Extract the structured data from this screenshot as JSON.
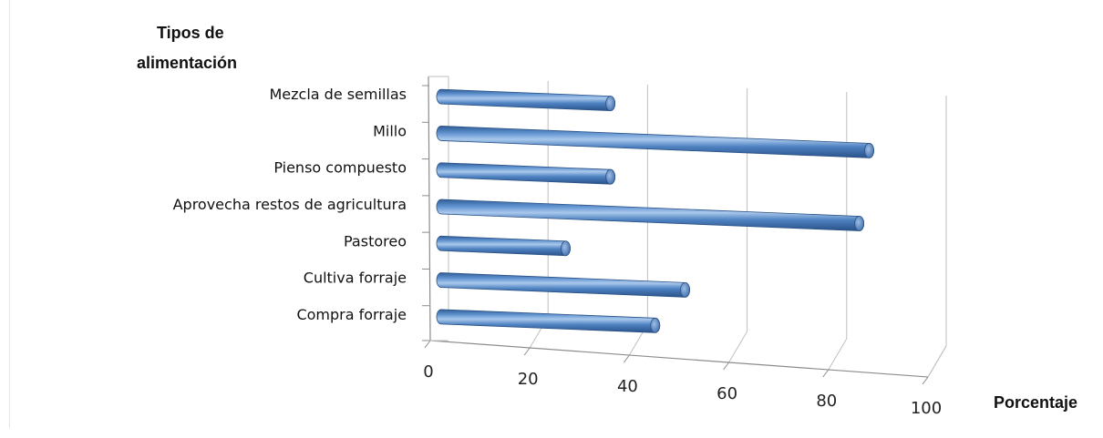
{
  "chart_data": {
    "type": "bar",
    "orientation": "horizontal",
    "style": "3d-cylinder",
    "title_line1": "Tipos de",
    "title_line2": "alimentación",
    "xlabel": "Porcentaje",
    "categories": [
      "Mezcla de semillas",
      "Millo",
      "Pienso compuesto",
      "Aprovecha restos de agricultura",
      "Pastoreo",
      "Cultiva forraje",
      "Compra forraje"
    ],
    "values": [
      34,
      86,
      34,
      84,
      25,
      49,
      43
    ],
    "xlim": [
      0,
      100
    ],
    "xticks": [
      "0",
      "20",
      "40",
      "60",
      "80",
      "100"
    ],
    "grid": true,
    "legend": "none",
    "bar_color": "#4a7ebb"
  }
}
